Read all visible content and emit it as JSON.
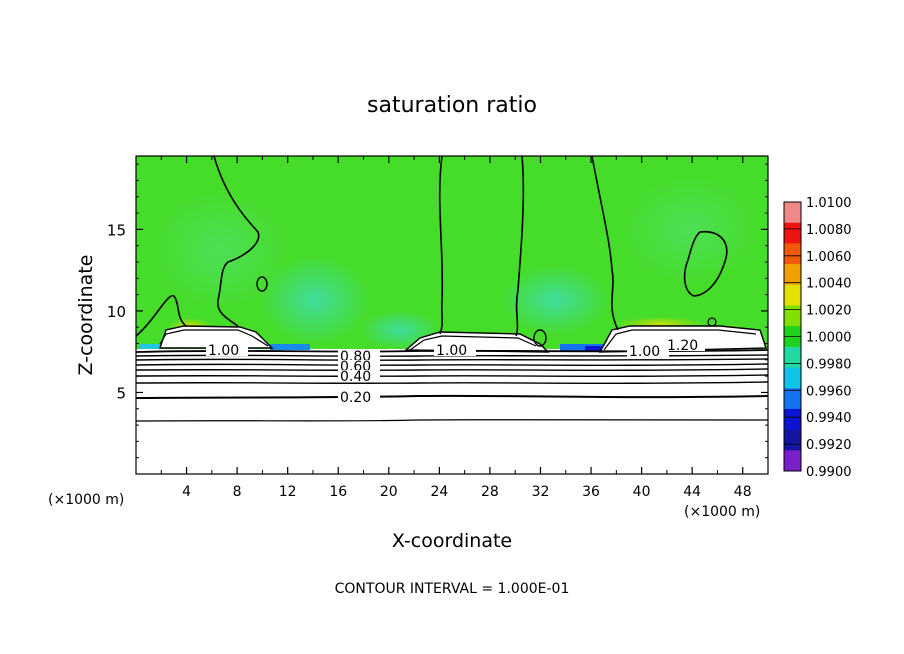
{
  "chart_data": {
    "type": "heatmap",
    "title": "saturation ratio",
    "xlabel": "X-coordinate",
    "ylabel": "Z-coordinate",
    "x_unit_left": "(×1000 m)",
    "x_unit_right": "(×1000 m)",
    "footer": "CONTOUR INTERVAL = 1.000E-01",
    "xlim": [
      0,
      50
    ],
    "ylim": [
      0,
      19.5
    ],
    "x_ticks": [
      4,
      8,
      12,
      16,
      20,
      24,
      28,
      32,
      36,
      40,
      44,
      48
    ],
    "x_tick_labels": [
      "4",
      "8",
      "12",
      "16",
      "20",
      "24",
      "28",
      "32",
      "36",
      "40",
      "44",
      "48"
    ],
    "y_ticks": [
      5,
      10,
      15
    ],
    "y_tick_labels": [
      "5",
      "10",
      "15"
    ],
    "colorbar": {
      "range": [
        0.99,
        1.01
      ],
      "labels": [
        "1.0100",
        "1.0080",
        "1.0060",
        "1.0040",
        "1.0020",
        "1.0000",
        "0.9980",
        "0.9960",
        "0.9940",
        "0.9920",
        "0.9900"
      ],
      "colors": [
        "#f08888",
        "#ee1414",
        "#f05a0a",
        "#f0a000",
        "#e6e000",
        "#80e000",
        "#1ed21e",
        "#20d8a0",
        "#10c4e8",
        "#1473f0",
        "#0a14d2",
        "#1414a0",
        "#7a20c8"
      ]
    },
    "contour_labels": [
      "1.00",
      "1.00",
      "1.00",
      "1.20",
      "0.80",
      "0.60",
      "0.40",
      "0.20"
    ],
    "dominant_value": 1.0
  }
}
